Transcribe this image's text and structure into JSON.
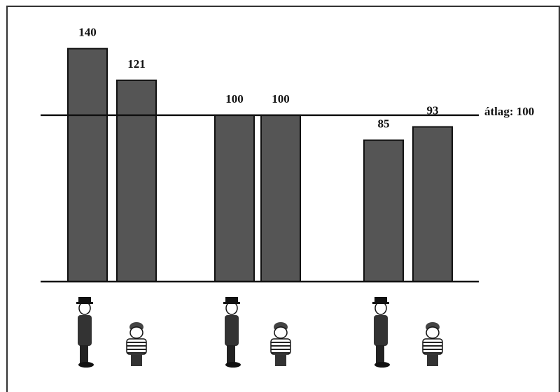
{
  "chart_data": {
    "type": "bar",
    "categories": [
      null,
      null,
      null,
      null,
      null,
      null
    ],
    "values": [
      140,
      121,
      100,
      100,
      85,
      93
    ],
    "color": "#555555",
    "ylim": [
      0,
      160
    ],
    "reference_line": {
      "value": 100,
      "label": "átlag: 100"
    }
  }
}
